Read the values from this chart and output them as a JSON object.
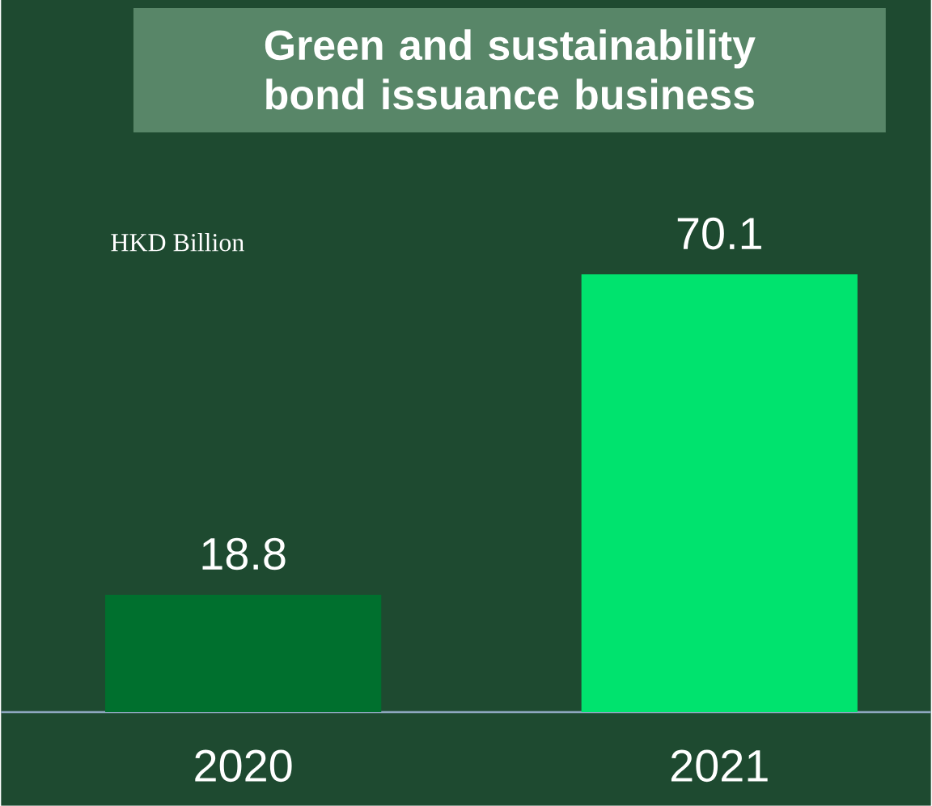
{
  "chart_data": {
    "type": "bar",
    "title": "Green and sustainability bond issuance business",
    "categories": [
      "2020",
      "2021"
    ],
    "values": [
      18.8,
      70.1
    ],
    "colors": [
      "#00702e",
      "#00e36e"
    ],
    "data_labels": true,
    "annotations": [
      "HKD Billion"
    ]
  }
}
